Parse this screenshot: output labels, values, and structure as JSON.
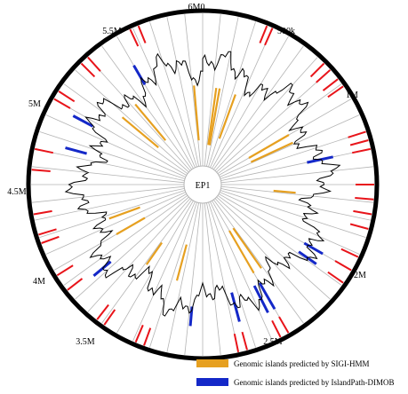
{
  "genome_map": {
    "center_label": "EP1",
    "position_labels": [
      "6M0",
      "500k",
      "1M",
      "2M",
      "2.5M",
      "3.5M",
      "4M",
      "4.5M",
      "5M",
      "5.5M"
    ],
    "colors": {
      "outer_ring": "#000000",
      "spoke": "#b4b4b4",
      "outer_feature": "#e8141a",
      "sigi_hmm": "#e6a020",
      "islandpath_dimob": "#1428c8",
      "gc_profile": "#000000"
    }
  },
  "legend": {
    "items": [
      {
        "label": "Genomic islands predicted by SIGI-HMM",
        "color": "#e6a020"
      },
      {
        "label": "Genomic islands predicted by IslandPath-DIMOB",
        "color": "#1428c8"
      }
    ]
  }
}
